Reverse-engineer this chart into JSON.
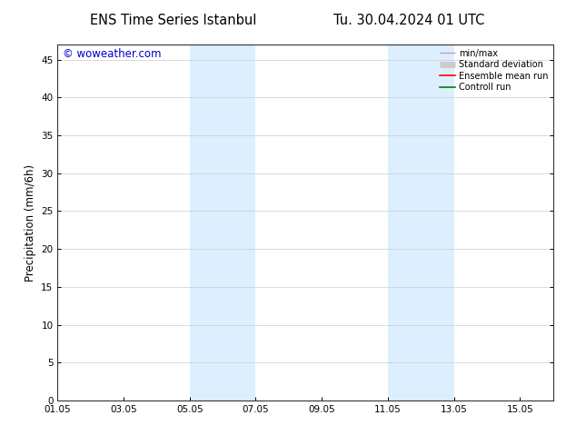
{
  "title_left": "ENS Time Series Istanbul",
  "title_right": "Tu. 30.04.2024 01 UTC",
  "ylabel": "Precipitation (mm/6h)",
  "watermark": "© woweather.com",
  "watermark_color": "#0000cc",
  "background_color": "#ffffff",
  "plot_bg_color": "#ffffff",
  "xmin": 0,
  "xmax": 360,
  "ymin": 0,
  "ymax": 47,
  "yticks": [
    0,
    5,
    10,
    15,
    20,
    25,
    30,
    35,
    40,
    45
  ],
  "xtick_labels": [
    "01.05",
    "03.05",
    "05.05",
    "07.05",
    "09.05",
    "11.05",
    "13.05",
    "15.05"
  ],
  "xtick_positions": [
    0,
    48,
    96,
    144,
    192,
    240,
    288,
    336
  ],
  "shaded_regions": [
    {
      "start": 96,
      "end": 144
    },
    {
      "start": 240,
      "end": 288
    }
  ],
  "shaded_color": "#ddeeff",
  "legend_items": [
    {
      "label": "min/max",
      "color": "#aaaaaa",
      "lw": 1.0,
      "style": "minmax"
    },
    {
      "label": "Standard deviation",
      "color": "#cccccc",
      "lw": 5,
      "style": "band"
    },
    {
      "label": "Ensemble mean run",
      "color": "#ff0000",
      "lw": 1.2,
      "style": "line"
    },
    {
      "label": "Controll run",
      "color": "#008000",
      "lw": 1.2,
      "style": "line"
    }
  ],
  "tick_fontsize": 7.5,
  "label_fontsize": 8.5,
  "title_fontsize": 10.5,
  "legend_fontsize": 7.0
}
